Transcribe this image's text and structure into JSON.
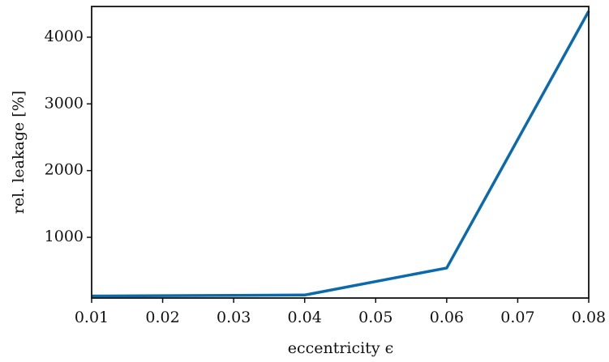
{
  "chart_data": {
    "type": "line",
    "x": [
      0.01,
      0.02,
      0.03,
      0.04,
      0.06,
      0.08
    ],
    "series": [
      {
        "name": "rel. leakage",
        "color": "#0a6aab",
        "values": [
          120,
          125,
          130,
          135,
          540,
          4390
        ]
      }
    ],
    "xlabel": "eccentricity ϵ",
    "ylabel": "rel. leakage [%]",
    "xlim": [
      0.01,
      0.08
    ],
    "xticks": [
      0.01,
      0.02,
      0.03,
      0.04,
      0.05,
      0.06,
      0.07,
      0.08
    ],
    "ylim": [
      90,
      4460
    ],
    "yticks": [
      1000,
      2000,
      3000,
      4000
    ],
    "grid": false
  }
}
